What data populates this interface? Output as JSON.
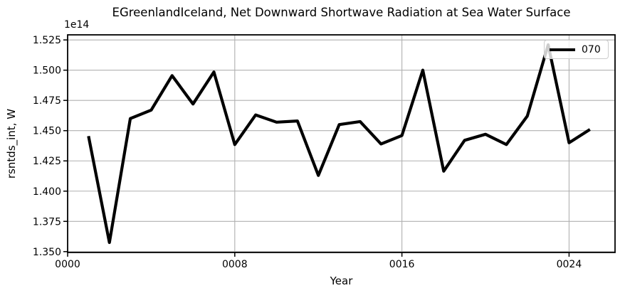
{
  "chart_data": {
    "type": "line",
    "title": "EGreenlandIceland, Net Downward Shortwave Radiation at Sea Water Surface",
    "xlabel": "Year",
    "ylabel": "rsntds_int, W",
    "y_offset_text": "1e14",
    "unit": "W",
    "value_scale": "values are in units of 1e14 W",
    "x": [
      1,
      2,
      3,
      4,
      5,
      6,
      7,
      8,
      9,
      10,
      11,
      12,
      13,
      14,
      15,
      16,
      17,
      18,
      19,
      20,
      21,
      22,
      23,
      24,
      25
    ],
    "series": [
      {
        "name": "070",
        "color": "#000000",
        "values": [
          1.4455,
          1.3575,
          1.46,
          1.467,
          1.4955,
          1.472,
          1.4985,
          1.4385,
          1.463,
          1.457,
          1.458,
          1.413,
          1.455,
          1.4575,
          1.439,
          1.446,
          1.5,
          1.4165,
          1.442,
          1.447,
          1.4385,
          1.462,
          1.521,
          1.44,
          1.451
        ]
      }
    ],
    "xlim": [
      0,
      26.2
    ],
    "ylim": [
      1.3493,
      1.5292
    ],
    "xticks": {
      "positions": [
        0,
        8,
        16,
        24
      ],
      "labels": [
        "0000",
        "0008",
        "0016",
        "0024"
      ]
    },
    "yticks": {
      "positions": [
        1.35,
        1.375,
        1.4,
        1.425,
        1.45,
        1.475,
        1.5,
        1.525
      ],
      "labels": [
        "1.350",
        "1.375",
        "1.400",
        "1.425",
        "1.450",
        "1.475",
        "1.500",
        "1.525"
      ]
    },
    "grid": true,
    "legend": {
      "location": "upper right",
      "entries": [
        {
          "label": "070",
          "color": "#000000"
        }
      ]
    },
    "colors": {
      "line": "#000000",
      "grid": "#b0b0b0",
      "spine": "#000000",
      "text": "#000000",
      "legend_border": "#cccccc",
      "legend_bg": "rgba(255,255,255,0.8)",
      "background": "#ffffff"
    }
  }
}
